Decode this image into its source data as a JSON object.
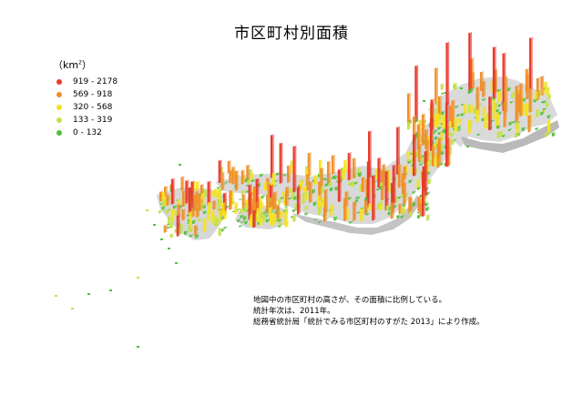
{
  "title": "市区町村別面積",
  "legend": {
    "unit": "（km",
    "unit_sup": "2",
    "unit_close": "）",
    "items": [
      {
        "label": "919 - 2178",
        "color": "#e83a2c"
      },
      {
        "label": "569 - 918",
        "color": "#ef8f2a"
      },
      {
        "label": "320 - 568",
        "color": "#f4e31e"
      },
      {
        "label": "133 - 319",
        "color": "#c4e24a"
      },
      {
        "label": "0 - 132",
        "color": "#4fc23b"
      }
    ]
  },
  "notes": [
    "地図中の市区町村の高さが、その面積に比例している。",
    "統計年次は、2011年。",
    "総務省統計局「統計でみる市区町村のすがた 2013」により作成。"
  ]
}
